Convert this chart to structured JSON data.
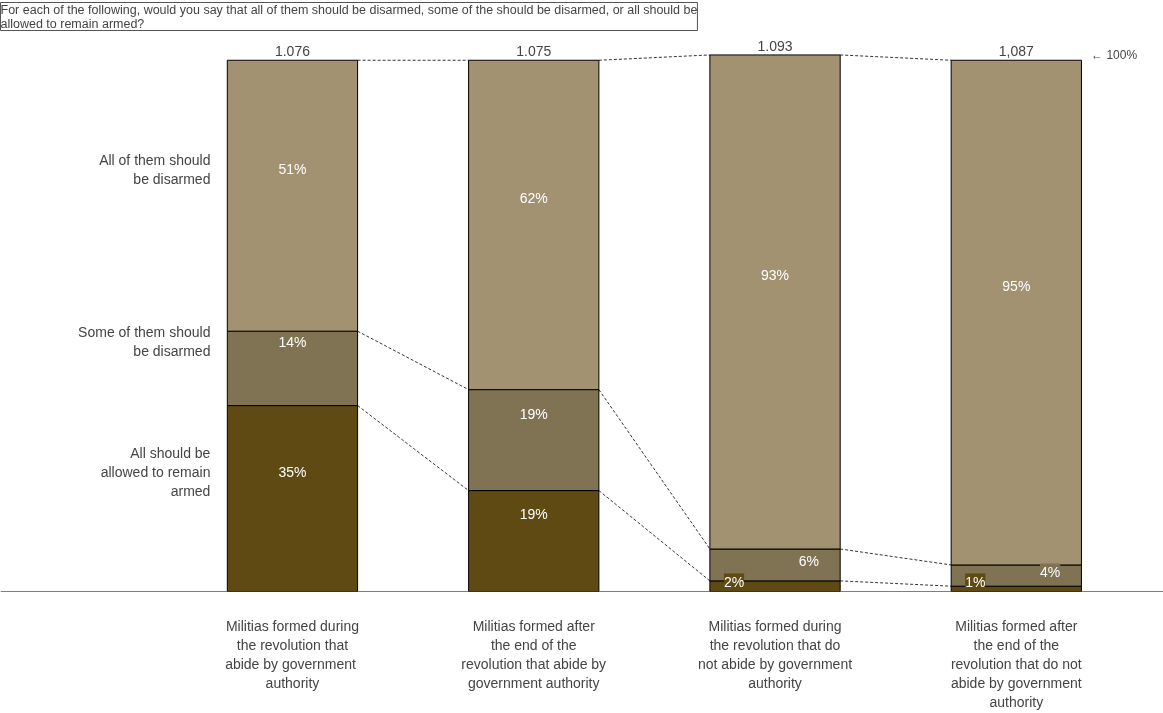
{
  "chart_data": {
    "type": "bar",
    "stacked": true,
    "title": "For each of the following, would you say that all of them should be disarmed, some of the should be disarmed, or all should be allowed to remain armed?",
    "categories": [
      "Militias formed during the revolution that abide  by government authority",
      "Militias formed after the end of the revolution that abide by government authority",
      "Militias formed during the revolution that do not abide by government authority",
      "Militias formed after the end of the revolution that do not abide by government authority"
    ],
    "series": [
      {
        "name": "All should be allowed to remain armed",
        "color": "#5e4a12",
        "values": [
          35,
          19,
          2,
          1
        ],
        "value_labels": [
          "35%",
          "19%",
          "2%",
          "1%"
        ]
      },
      {
        "name": "Some of them should be disarmed",
        "color": "#807354",
        "values": [
          14,
          19,
          6,
          4
        ],
        "value_labels": [
          "14%",
          "19%",
          "6%",
          "4%"
        ]
      },
      {
        "name": "All of them should be disarmed",
        "color": "#a39272",
        "values": [
          51,
          62,
          93,
          95
        ],
        "value_labels": [
          "51%",
          "62%",
          "93%",
          "95%"
        ]
      }
    ],
    "annotations": [
      "1.076",
      "1.075",
      "1.093",
      "1,087",
      "← 100%"
    ],
    "tick_labels": "x",
    "grid": false
  }
}
